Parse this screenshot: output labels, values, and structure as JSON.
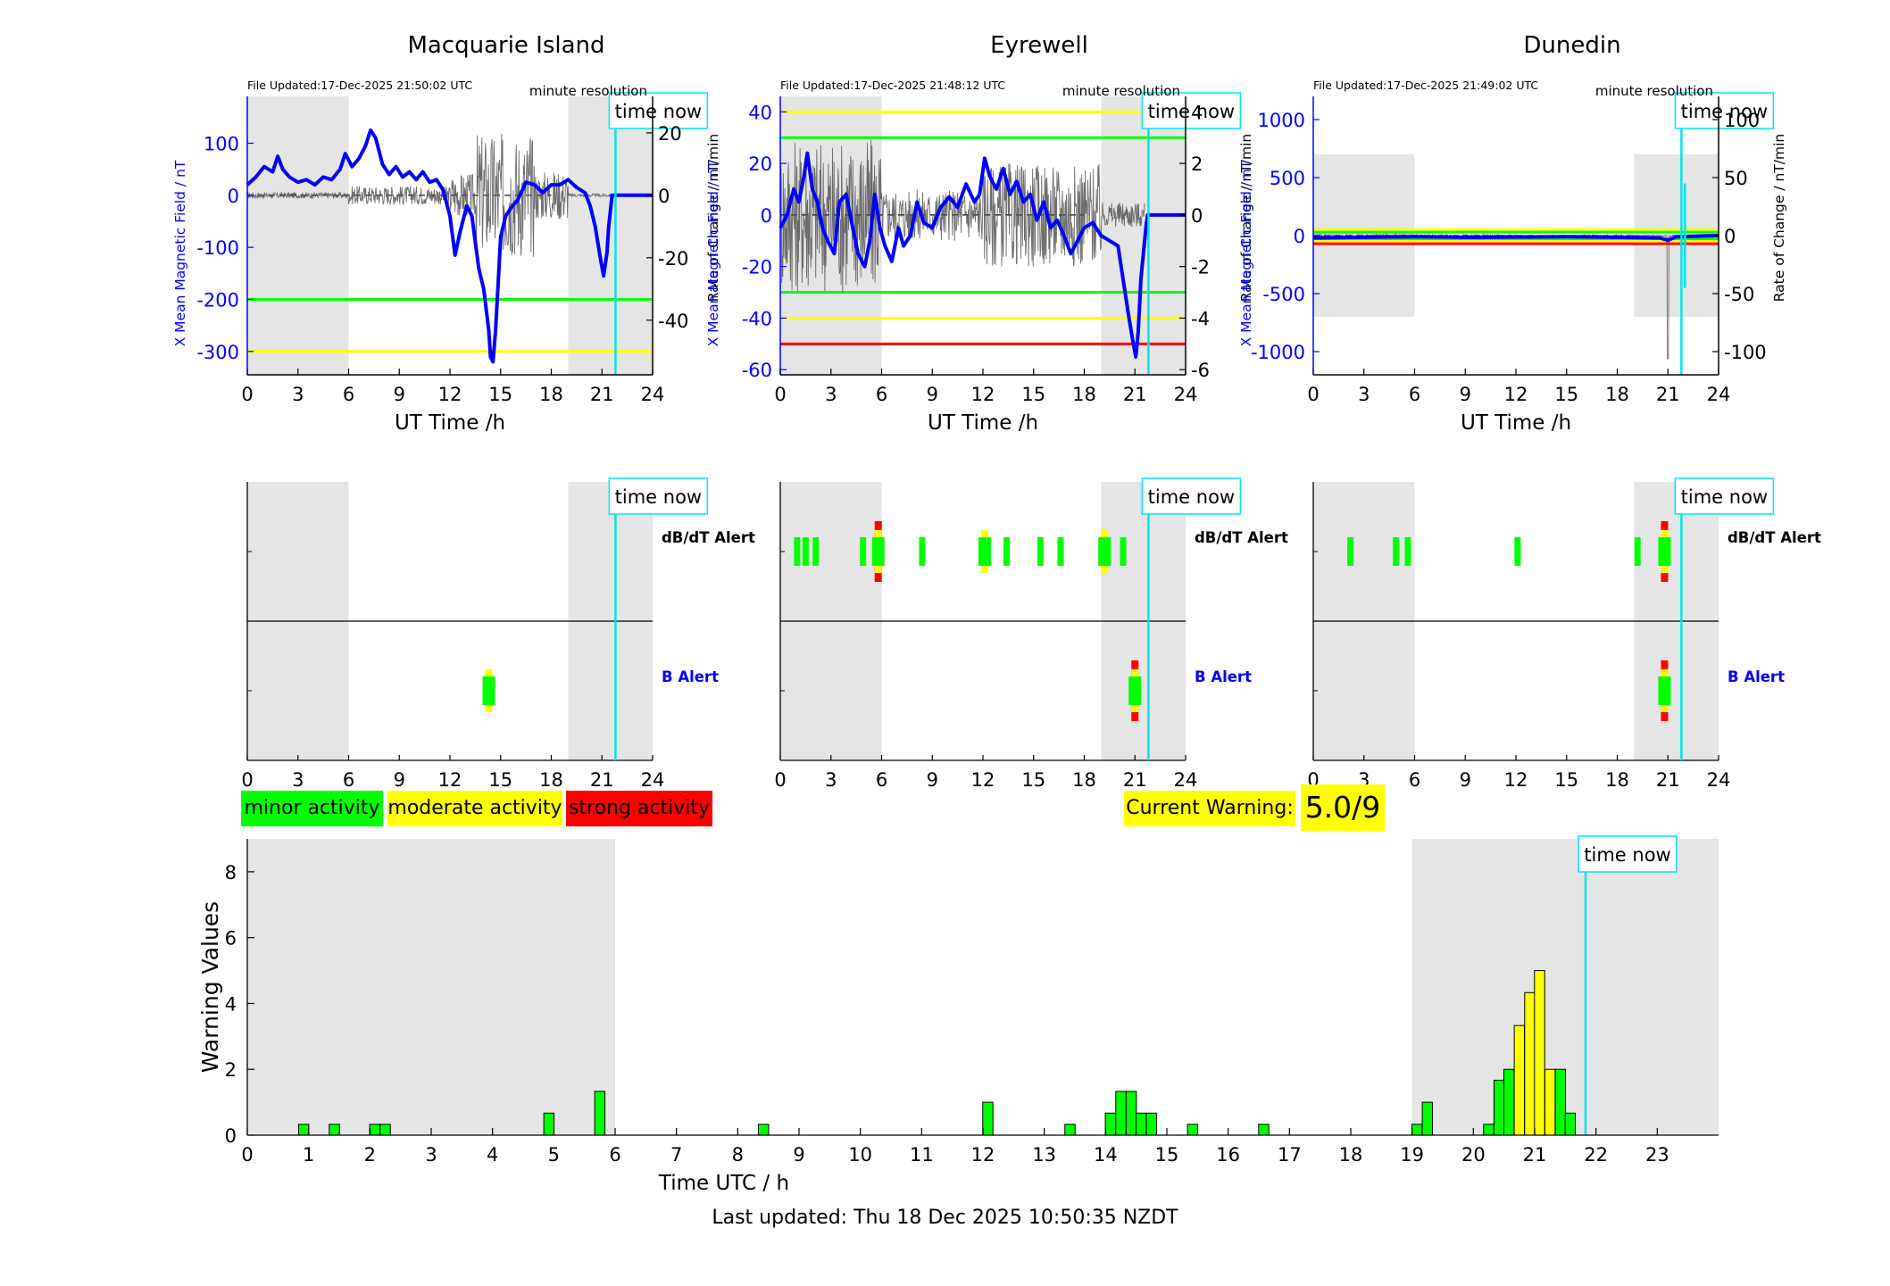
{
  "panels": [
    {
      "title": "Macquarie Island",
      "file_updated": "File Updated:17-Dec-2025 21:50:02 UTC",
      "resolution": "minute resolution",
      "y_left": {
        "label": "X Mean Magnetic Field / nT",
        "ticks": [
          100,
          0,
          -100,
          -200,
          -300
        ],
        "range": [
          -345,
          190
        ]
      },
      "y_right": {
        "label": "Rate of Change / nT/min",
        "ticks": [
          20,
          0,
          -20,
          -40
        ],
        "range": [
          -57.5,
          31.7
        ]
      },
      "thresholds": [
        {
          "value": -200,
          "color": "#00ff00"
        },
        {
          "value": -300,
          "color": "#ffff00"
        }
      ],
      "field_series": [
        [
          0,
          20
        ],
        [
          0.5,
          35
        ],
        [
          1,
          55
        ],
        [
          1.5,
          45
        ],
        [
          1.8,
          75
        ],
        [
          2.1,
          50
        ],
        [
          2.5,
          35
        ],
        [
          3,
          25
        ],
        [
          3.5,
          30
        ],
        [
          4,
          20
        ],
        [
          4.5,
          35
        ],
        [
          5,
          30
        ],
        [
          5.5,
          50
        ],
        [
          5.8,
          80
        ],
        [
          6.2,
          55
        ],
        [
          6.6,
          70
        ],
        [
          7,
          95
        ],
        [
          7.3,
          125
        ],
        [
          7.6,
          110
        ],
        [
          8,
          60
        ],
        [
          8.4,
          40
        ],
        [
          8.8,
          55
        ],
        [
          9.2,
          35
        ],
        [
          9.6,
          45
        ],
        [
          10,
          30
        ],
        [
          10.4,
          45
        ],
        [
          10.8,
          25
        ],
        [
          11.2,
          30
        ],
        [
          11.6,
          10
        ],
        [
          12,
          -40
        ],
        [
          12.3,
          -115
        ],
        [
          12.6,
          -70
        ],
        [
          13,
          -20
        ],
        [
          13.3,
          -40
        ],
        [
          13.7,
          -140
        ],
        [
          14,
          -180
        ],
        [
          14.3,
          -260
        ],
        [
          14.4,
          -310
        ],
        [
          14.55,
          -320
        ],
        [
          14.7,
          -260
        ],
        [
          15,
          -80
        ],
        [
          15.3,
          -40
        ],
        [
          15.7,
          -20
        ],
        [
          16,
          -10
        ],
        [
          16.5,
          25
        ],
        [
          17,
          20
        ],
        [
          17.5,
          5
        ],
        [
          18,
          20
        ],
        [
          18.5,
          20
        ],
        [
          19,
          30
        ],
        [
          19.5,
          15
        ],
        [
          20,
          5
        ],
        [
          20.3,
          -20
        ],
        [
          20.6,
          -60
        ],
        [
          20.9,
          -120
        ],
        [
          21.1,
          -155
        ],
        [
          21.3,
          -110
        ],
        [
          21.4,
          -60
        ],
        [
          21.5,
          -30
        ],
        [
          21.6,
          0
        ],
        [
          24,
          0
        ]
      ],
      "roc_spans": [
        1,
        3,
        8,
        0.5,
        14,
        20,
        1
      ],
      "time_now": 21.8,
      "night_bands": [
        [
          0,
          6
        ],
        [
          19,
          24
        ]
      ],
      "alerts": {
        "dbdt": [],
        "b": [
          {
            "t": 14.3,
            "level": "moderate"
          }
        ]
      }
    },
    {
      "title": "Eyrewell",
      "file_updated": "File Updated:17-Dec-2025 21:48:12 UTC",
      "resolution": "minute resolution",
      "y_left": {
        "label": "X Mean Magnetic Field / nT",
        "ticks": [
          40,
          20,
          0,
          -20,
          -40,
          -60
        ],
        "range": [
          -62,
          46
        ]
      },
      "y_right": {
        "label": "Rate of Change / nT/min",
        "ticks": [
          4,
          2,
          0,
          -2,
          -4,
          -6
        ],
        "range": [
          -6.2,
          4.6
        ]
      },
      "thresholds": [
        {
          "value": 40,
          "color": "#ffff00"
        },
        {
          "value": 30,
          "color": "#00ff00"
        },
        {
          "value": -30,
          "color": "#00ff00"
        },
        {
          "value": -40,
          "color": "#ffff00"
        },
        {
          "value": -50,
          "color": "#ff0000"
        }
      ],
      "field_series": [
        [
          0,
          -5
        ],
        [
          0.4,
          0
        ],
        [
          0.8,
          10
        ],
        [
          1.1,
          5
        ],
        [
          1.4,
          15
        ],
        [
          1.6,
          24
        ],
        [
          1.9,
          10
        ],
        [
          2.2,
          5
        ],
        [
          2.5,
          -5
        ],
        [
          2.8,
          -10
        ],
        [
          3.2,
          -15
        ],
        [
          3.5,
          5
        ],
        [
          3.9,
          8
        ],
        [
          4.2,
          -2
        ],
        [
          4.6,
          -15
        ],
        [
          5,
          -20
        ],
        [
          5.3,
          -10
        ],
        [
          5.6,
          8
        ],
        [
          5.9,
          -5
        ],
        [
          6.2,
          -12
        ],
        [
          6.6,
          -18
        ],
        [
          7,
          -5
        ],
        [
          7.3,
          -12
        ],
        [
          7.7,
          -8
        ],
        [
          8.1,
          5
        ],
        [
          8.5,
          -3
        ],
        [
          9,
          -5
        ],
        [
          9.5,
          3
        ],
        [
          10,
          7
        ],
        [
          10.5,
          3
        ],
        [
          11,
          12
        ],
        [
          11.5,
          5
        ],
        [
          11.8,
          8
        ],
        [
          12.1,
          22
        ],
        [
          12.4,
          15
        ],
        [
          12.8,
          10
        ],
        [
          13.2,
          18
        ],
        [
          13.6,
          8
        ],
        [
          14,
          13
        ],
        [
          14.4,
          5
        ],
        [
          14.8,
          8
        ],
        [
          15.2,
          -2
        ],
        [
          15.6,
          5
        ],
        [
          16,
          -5
        ],
        [
          16.4,
          -2
        ],
        [
          16.8,
          -8
        ],
        [
          17.2,
          -15
        ],
        [
          17.6,
          -10
        ],
        [
          18,
          -5
        ],
        [
          18.5,
          -3
        ],
        [
          19,
          -8
        ],
        [
          19.5,
          -10
        ],
        [
          20,
          -12
        ],
        [
          20.3,
          -25
        ],
        [
          20.6,
          -38
        ],
        [
          20.9,
          -50
        ],
        [
          21.05,
          -55
        ],
        [
          21.2,
          -45
        ],
        [
          21.35,
          -25
        ],
        [
          21.5,
          -15
        ],
        [
          21.65,
          -5
        ],
        [
          21.75,
          0
        ],
        [
          24,
          0
        ]
      ],
      "roc_spans": [
        3,
        1,
        2,
        0.5,
        2.5,
        4,
        0.5
      ],
      "time_now": 21.8,
      "night_bands": [
        [
          0,
          6
        ],
        [
          19,
          24
        ]
      ],
      "alerts": {
        "dbdt": [
          {
            "t": 1.0,
            "level": "minor"
          },
          {
            "t": 1.5,
            "level": "minor"
          },
          {
            "t": 2.1,
            "level": "minor"
          },
          {
            "t": 4.9,
            "level": "minor"
          },
          {
            "t": 5.8,
            "level": "strong"
          },
          {
            "t": 8.4,
            "level": "minor"
          },
          {
            "t": 12.1,
            "level": "moderate"
          },
          {
            "t": 13.4,
            "level": "minor"
          },
          {
            "t": 15.4,
            "level": "minor"
          },
          {
            "t": 16.6,
            "level": "minor"
          },
          {
            "t": 19.2,
            "level": "moderate"
          },
          {
            "t": 20.3,
            "level": "minor"
          }
        ],
        "b": [
          {
            "t": 21.0,
            "level": "strong"
          }
        ]
      }
    },
    {
      "title": "Dunedin",
      "file_updated": "File Updated:17-Dec-2025 21:49:02 UTC",
      "resolution": "minute resolution",
      "y_left": {
        "label": "X Mean Magnetic Field / nT",
        "ticks": [
          1000,
          500,
          0,
          -500,
          -1000
        ],
        "range": [
          -1200,
          1200
        ]
      },
      "y_right": {
        "label": "Rate of Change / nT/min",
        "ticks": [
          100,
          50,
          0,
          -50,
          -100
        ],
        "range": [
          -120,
          120
        ]
      },
      "thresholds": [
        {
          "value": 50,
          "color": "#ffff00"
        },
        {
          "value": 30,
          "color": "#00ff00"
        },
        {
          "value": -30,
          "color": "#00ff00"
        },
        {
          "value": -50,
          "color": "#ffff00"
        },
        {
          "value": -70,
          "color": "#ff0000"
        }
      ],
      "field_series": [
        [
          0,
          -20
        ],
        [
          3,
          -15
        ],
        [
          6,
          -10
        ],
        [
          9,
          -15
        ],
        [
          12,
          -12
        ],
        [
          15,
          -10
        ],
        [
          18,
          -15
        ],
        [
          20.5,
          -20
        ],
        [
          21,
          -40
        ],
        [
          21.5,
          -10
        ],
        [
          24,
          0
        ]
      ],
      "roc_spans": [
        1,
        1,
        1,
        0.5,
        1,
        1.5,
        125
      ],
      "time_now": 21.8,
      "now_marker": {
        "t": 21.8,
        "top": 45,
        "bottom": -45
      },
      "night_bands": [
        [
          0,
          6
        ],
        [
          19,
          24
        ]
      ],
      "alerts": {
        "dbdt": [
          {
            "t": 2.2,
            "level": "minor"
          },
          {
            "t": 4.9,
            "level": "minor"
          },
          {
            "t": 5.6,
            "level": "minor"
          },
          {
            "t": 12.1,
            "level": "minor"
          },
          {
            "t": 19.2,
            "level": "minor"
          },
          {
            "t": 20.8,
            "level": "strong"
          }
        ],
        "b": [
          {
            "t": 20.8,
            "level": "strong"
          }
        ]
      }
    }
  ],
  "x_axis": {
    "label": "UT Time /h",
    "ticks": [
      0,
      3,
      6,
      9,
      12,
      15,
      18,
      21,
      24
    ]
  },
  "time_now_label": "time now",
  "alert_labels": {
    "dbdt": "dB/dT Alert",
    "b": "B Alert"
  },
  "legend": [
    {
      "label": "minor activity",
      "color": "#00ff00"
    },
    {
      "label": "moderate activity",
      "color": "#ffff00"
    },
    {
      "label": "strong activity",
      "color": "#ff0000"
    }
  ],
  "level_colors": {
    "minor": "#00ff00",
    "moderate": "#ffff00",
    "strong": "#ff0000"
  },
  "current_warning": {
    "label": "Current Warning:",
    "value": "5.0/9"
  },
  "chart_data": {
    "type": "bar",
    "title": "",
    "xlabel": "Time UTC / h",
    "ylabel": "Warning Values",
    "xlim": [
      0,
      24
    ],
    "ylim": [
      0,
      9
    ],
    "x_ticks": [
      0,
      1,
      2,
      3,
      4,
      5,
      6,
      7,
      8,
      9,
      10,
      11,
      12,
      13,
      14,
      15,
      16,
      17,
      18,
      19,
      20,
      21,
      22,
      23
    ],
    "y_ticks": [
      0,
      2,
      4,
      6,
      8
    ],
    "bin_width_h": 0.1667,
    "time_now": 21.83,
    "night_bands": [
      [
        0,
        6
      ],
      [
        19,
        24
      ]
    ],
    "bars": [
      {
        "x": 0.92,
        "value": 0.33,
        "level": "minor"
      },
      {
        "x": 1.42,
        "value": 0.33,
        "level": "minor"
      },
      {
        "x": 2.08,
        "value": 0.33,
        "level": "minor"
      },
      {
        "x": 2.25,
        "value": 0.33,
        "level": "minor"
      },
      {
        "x": 4.92,
        "value": 0.67,
        "level": "minor"
      },
      {
        "x": 5.75,
        "value": 1.33,
        "level": "minor"
      },
      {
        "x": 8.42,
        "value": 0.33,
        "level": "minor"
      },
      {
        "x": 12.08,
        "value": 1.0,
        "level": "minor"
      },
      {
        "x": 13.42,
        "value": 0.33,
        "level": "minor"
      },
      {
        "x": 14.08,
        "value": 0.67,
        "level": "minor"
      },
      {
        "x": 14.25,
        "value": 1.33,
        "level": "minor"
      },
      {
        "x": 14.42,
        "value": 1.33,
        "level": "minor"
      },
      {
        "x": 14.58,
        "value": 0.67,
        "level": "minor"
      },
      {
        "x": 14.75,
        "value": 0.67,
        "level": "minor"
      },
      {
        "x": 15.42,
        "value": 0.33,
        "level": "minor"
      },
      {
        "x": 16.58,
        "value": 0.33,
        "level": "minor"
      },
      {
        "x": 19.08,
        "value": 0.33,
        "level": "minor"
      },
      {
        "x": 19.25,
        "value": 1.0,
        "level": "minor"
      },
      {
        "x": 20.25,
        "value": 0.33,
        "level": "minor"
      },
      {
        "x": 20.42,
        "value": 1.67,
        "level": "minor"
      },
      {
        "x": 20.58,
        "value": 2.0,
        "level": "minor"
      },
      {
        "x": 20.75,
        "value": 3.33,
        "level": "moderate"
      },
      {
        "x": 20.92,
        "value": 4.33,
        "level": "moderate"
      },
      {
        "x": 21.08,
        "value": 5.0,
        "level": "moderate"
      },
      {
        "x": 21.25,
        "value": 2.0,
        "level": "moderate"
      },
      {
        "x": 21.42,
        "value": 2.0,
        "level": "minor"
      },
      {
        "x": 21.58,
        "value": 0.67,
        "level": "minor"
      }
    ]
  },
  "footer": "Last updated: Thu 18 Dec 2025 10:50:35 NZDT"
}
